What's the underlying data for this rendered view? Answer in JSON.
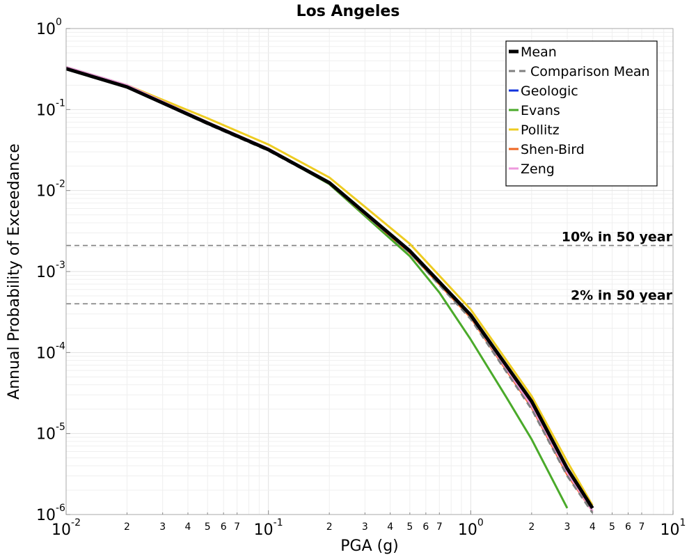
{
  "chart_data": {
    "type": "line",
    "title": "Los Angeles",
    "xlabel": "PGA (g)",
    "ylabel": "Annual Probability of Exceedance",
    "xscale": "log",
    "yscale": "log",
    "xlim": [
      0.01,
      10
    ],
    "ylim": [
      1e-06,
      1
    ],
    "grid": true,
    "legend_position": "top-right",
    "x_major_ticks": [
      {
        "base": "10",
        "exp": "-2"
      },
      {
        "base": "10",
        "exp": "-1"
      },
      {
        "base": "10",
        "exp": "0"
      },
      {
        "base": "10",
        "exp": "1"
      }
    ],
    "y_major_ticks": [
      {
        "base": "10",
        "exp": "0"
      },
      {
        "base": "10",
        "exp": "-1"
      },
      {
        "base": "10",
        "exp": "-2"
      },
      {
        "base": "10",
        "exp": "-3"
      },
      {
        "base": "10",
        "exp": "-4"
      },
      {
        "base": "10",
        "exp": "-5"
      },
      {
        "base": "10",
        "exp": "-6"
      }
    ],
    "x_minor_tick_labels": [
      "2",
      "3",
      "4",
      "5",
      "6",
      "7"
    ],
    "reference_lines": [
      {
        "label": "10% in 50 year",
        "y": 0.0021,
        "color": "#808080"
      },
      {
        "label": "2% in 50 year",
        "y": 0.0004,
        "color": "#808080"
      }
    ],
    "series": [
      {
        "name": "Geologic",
        "color": "#1133dd",
        "dash": "solid",
        "width": 3,
        "x": [
          0.01,
          0.02,
          0.05,
          0.1,
          0.2,
          0.5,
          1.0,
          2.0,
          3.0,
          4.0
        ],
        "y": [
          0.32,
          0.19,
          0.068,
          0.032,
          0.0125,
          0.0018,
          0.00028,
          2.3e-05,
          3.5e-06,
          1.2e-06
        ]
      },
      {
        "name": "Evans",
        "color": "#4aaa2a",
        "dash": "solid",
        "width": 3,
        "x": [
          0.01,
          0.02,
          0.05,
          0.1,
          0.2,
          0.5,
          0.7,
          1.0,
          1.5,
          2.0,
          3.0
        ],
        "y": [
          0.335,
          0.2,
          0.07,
          0.032,
          0.012,
          0.00155,
          0.00055,
          0.000145,
          2.8e-05,
          8.5e-06,
          1.2e-06
        ]
      },
      {
        "name": "Pollitz",
        "color": "#eecc22",
        "dash": "solid",
        "width": 3,
        "x": [
          0.01,
          0.02,
          0.05,
          0.1,
          0.2,
          0.5,
          1.0,
          2.0,
          3.0,
          4.0
        ],
        "y": [
          0.33,
          0.2,
          0.078,
          0.037,
          0.0145,
          0.0022,
          0.00034,
          2.9e-05,
          4.5e-06,
          1.3e-06
        ]
      },
      {
        "name": "Shen-Bird",
        "color": "#ee6622",
        "dash": "solid",
        "width": 3,
        "x": [
          0.01,
          0.02,
          0.05,
          0.1,
          0.2,
          0.5,
          1.0,
          2.0,
          3.0,
          4.0
        ],
        "y": [
          0.32,
          0.19,
          0.068,
          0.032,
          0.0122,
          0.0017,
          0.00027,
          2.1e-05,
          3.1e-06,
          1.1e-06
        ]
      },
      {
        "name": "Zeng",
        "color": "#ee99dd",
        "dash": "solid",
        "width": 3,
        "x": [
          0.01,
          0.02,
          0.05,
          0.1,
          0.2,
          0.5,
          1.0,
          2.0,
          3.0,
          4.0
        ],
        "y": [
          0.335,
          0.2,
          0.07,
          0.033,
          0.0126,
          0.0018,
          0.00028,
          2.2e-05,
          3.3e-06,
          1.1e-06
        ]
      },
      {
        "name": "Comparison Mean",
        "color": "#808080",
        "dash": "dashed",
        "width": 3,
        "x": [
          0.01,
          0.02,
          0.05,
          0.1,
          0.2,
          0.5,
          1.0,
          2.0,
          3.0,
          4.0
        ],
        "y": [
          0.32,
          0.19,
          0.066,
          0.031,
          0.0122,
          0.0017,
          0.00026,
          2e-05,
          3e-06,
          1.05e-06
        ]
      },
      {
        "name": "Mean",
        "color": "#000000",
        "dash": "solid",
        "width": 5,
        "x": [
          0.01,
          0.02,
          0.05,
          0.1,
          0.2,
          0.5,
          1.0,
          2.0,
          3.0,
          4.0
        ],
        "y": [
          0.32,
          0.19,
          0.068,
          0.032,
          0.0125,
          0.0018,
          0.00029,
          2.5e-05,
          3.7e-06,
          1.2e-06
        ]
      }
    ],
    "legend_order": [
      "Mean",
      "Comparison Mean",
      "Geologic",
      "Evans",
      "Pollitz",
      "Shen-Bird",
      "Zeng"
    ]
  }
}
